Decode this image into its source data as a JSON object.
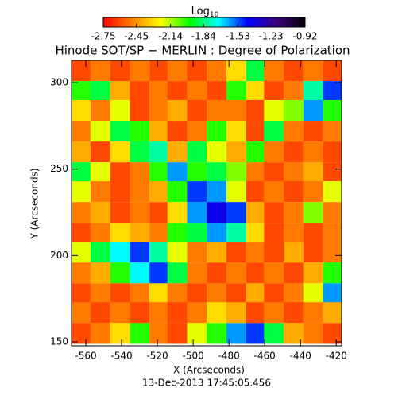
{
  "chart_data": {
    "type": "heatmap",
    "title": "Hinode SOT/SP − MERLIN : Degree of Polarization",
    "colorbar_label": "Log",
    "colorbar_label_sub": "10",
    "zlim": [
      -2.75,
      -0.92
    ],
    "zticks": [
      -2.75,
      -2.45,
      -2.14,
      -1.84,
      -1.53,
      -1.23,
      -0.92
    ],
    "colormap": [
      "#ff0000",
      "#ff8000",
      "#ffff00",
      "#00ff00",
      "#00ffff",
      "#0000ff",
      "#400080",
      "#000000"
    ],
    "x_label": "X (Arcseconds)",
    "y_label": "Y (Arcseconds)",
    "footer": "13-Dec-2013 17:45:05.456",
    "xlim": [
      -568,
      -417
    ],
    "ylim": [
      147.7,
      312.9
    ],
    "xticks": [
      -560,
      -540,
      -520,
      -500,
      -480,
      -460,
      -440,
      -420
    ],
    "yticks": [
      150,
      200,
      250,
      300
    ],
    "x": [
      -563,
      -552,
      -541,
      -530,
      -519,
      -509,
      -498,
      -487,
      -476,
      -465,
      -455,
      -444,
      -433,
      -422
    ],
    "y": [
      307,
      295,
      284,
      272,
      260,
      248,
      237,
      225,
      213,
      202,
      190,
      178,
      167,
      155
    ],
    "z": [
      [
        -2.6,
        -2.5,
        -2.6,
        -2.5,
        -2.6,
        -2.5,
        -2.6,
        -2.5,
        -2.3,
        -1.9,
        -2.5,
        -2.6,
        -2.5,
        -2.6
      ],
      [
        -2.0,
        -1.9,
        -2.4,
        -2.6,
        -2.5,
        -2.6,
        -2.5,
        -2.6,
        -2.0,
        -2.3,
        -2.6,
        -2.5,
        -1.8,
        -1.5
      ],
      [
        -2.3,
        -2.5,
        -2.2,
        -2.6,
        -2.5,
        -2.4,
        -2.6,
        -2.5,
        -2.5,
        -2.6,
        -2.2,
        -2.1,
        -1.6,
        -2.0
      ],
      [
        -2.5,
        -2.2,
        -1.9,
        -2.0,
        -2.4,
        -2.6,
        -2.5,
        -2.0,
        -2.3,
        -2.6,
        -1.9,
        -2.5,
        -2.6,
        -2.5
      ],
      [
        -2.4,
        -2.6,
        -2.3,
        -1.9,
        -1.8,
        -2.4,
        -1.9,
        -2.2,
        -2.4,
        -2.0,
        -2.5,
        -2.6,
        -2.5,
        -2.6
      ],
      [
        -1.9,
        -2.2,
        -2.6,
        -2.5,
        -2.0,
        -1.6,
        -2.0,
        -1.9,
        -2.1,
        -2.5,
        -2.6,
        -2.5,
        -2.4,
        -2.6
      ],
      [
        -2.2,
        -2.5,
        -2.6,
        -2.5,
        -2.4,
        -2.0,
        -1.5,
        -1.6,
        -2.2,
        -2.6,
        -2.5,
        -2.6,
        -2.5,
        -2.2
      ],
      [
        -2.5,
        -2.4,
        -2.6,
        -2.5,
        -2.6,
        -2.3,
        -1.6,
        -1.4,
        -1.5,
        -2.4,
        -2.6,
        -2.5,
        -2.1,
        -2.5
      ],
      [
        -2.6,
        -2.5,
        -2.3,
        -2.4,
        -2.5,
        -2.0,
        -1.9,
        -1.6,
        -1.8,
        -2.3,
        -2.6,
        -2.5,
        -2.6,
        -2.5
      ],
      [
        -2.2,
        -1.9,
        -1.7,
        -1.5,
        -1.8,
        -2.2,
        -2.5,
        -2.4,
        -2.6,
        -2.5,
        -2.6,
        -2.4,
        -2.6,
        -2.5
      ],
      [
        -2.5,
        -2.4,
        -2.0,
        -1.7,
        -1.5,
        -1.9,
        -2.5,
        -2.6,
        -2.5,
        -2.6,
        -2.5,
        -2.6,
        -2.4,
        -2.0
      ],
      [
        -2.6,
        -2.5,
        -2.6,
        -2.5,
        -2.3,
        -2.5,
        -2.6,
        -2.5,
        -2.6,
        -2.4,
        -2.6,
        -2.5,
        -2.2,
        -1.6
      ],
      [
        -2.5,
        -2.6,
        -2.5,
        -2.6,
        -2.5,
        -2.6,
        -2.5,
        -2.3,
        -2.4,
        -2.6,
        -2.5,
        -2.6,
        -2.5,
        -2.4
      ],
      [
        -2.6,
        -2.5,
        -2.3,
        -2.0,
        -2.5,
        -2.6,
        -2.2,
        -2.0,
        -1.6,
        -1.5,
        -1.9,
        -2.4,
        -2.5,
        -2.6
      ]
    ]
  }
}
